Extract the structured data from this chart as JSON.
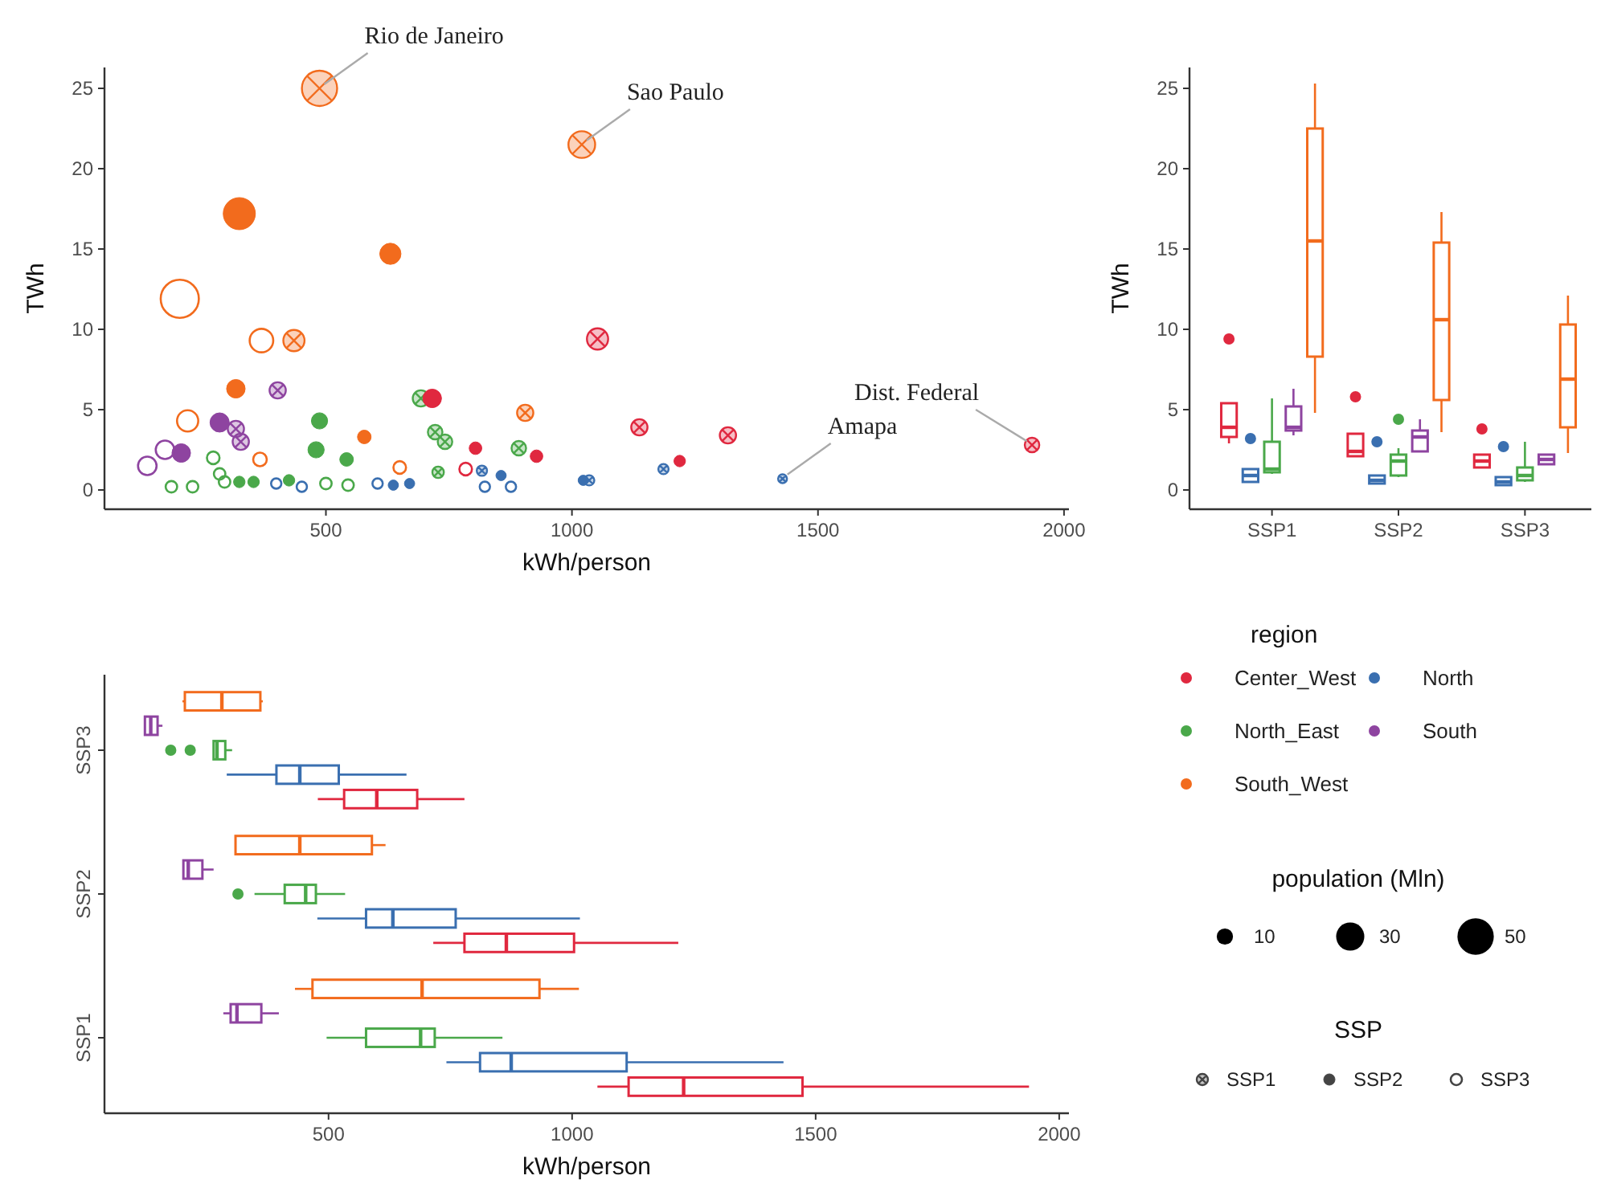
{
  "chart_data": [
    {
      "type": "bubble",
      "xlabel": "kWh/person",
      "ylabel": "TWh",
      "xlim": [
        50,
        2010
      ],
      "ylim": [
        -1.2,
        26.3
      ],
      "xticks": [
        500,
        1000,
        1500,
        2000
      ],
      "yticks": [
        0,
        5,
        10,
        15,
        20,
        25
      ],
      "legend": "right",
      "legend_title": "region",
      "size_legend": [
        10,
        30,
        50
      ],
      "annotations": [
        {
          "text": "Rio de Janeiro",
          "x": 487,
          "y": 25.0
        },
        {
          "text": "Sao Paulo",
          "x": 1020,
          "y": 21.5
        },
        {
          "text": "Dist. Federal",
          "x": 1935,
          "y": 2.8
        },
        {
          "text": "Amapa",
          "x": 1428,
          "y": 0.7
        },
        "population (Mln)",
        "SSP"
      ],
      "series": [
        {
          "name": "Center_West",
          "color": "#e0283f",
          "marker": "cross",
          "x": [
            1052,
            1137,
            1317,
            1935
          ],
          "values": [
            9.4,
            3.9,
            3.4,
            2.8
          ],
          "sizes": [
            17,
            10,
            10,
            8
          ]
        },
        {
          "name": "North",
          "color": "#3a6fb0",
          "marker": "cross",
          "x": [
            817,
            1035,
            1186,
            1428
          ],
          "values": [
            1.2,
            0.6,
            1.3,
            0.7
          ],
          "sizes": [
            4,
            4,
            4,
            3
          ]
        },
        {
          "name": "North_East",
          "color": "#4aa84a",
          "marker": "cross",
          "x": [
            693,
            722,
            742,
            892,
            728
          ],
          "values": [
            5.7,
            3.6,
            3.0,
            2.6,
            1.1
          ],
          "sizes": [
            10,
            8,
            8,
            8,
            5
          ]
        },
        {
          "name": "South",
          "color": "#8e44a0",
          "marker": "cross",
          "x": [
            317,
            327,
            402
          ],
          "values": [
            3.8,
            3.0,
            6.2
          ],
          "sizes": [
            10,
            10,
            10
          ]
        },
        {
          "name": "South_West",
          "color": "#f26b1d",
          "marker": "cross",
          "x": [
            435,
            487,
            905,
            1020
          ],
          "values": [
            9.3,
            25.0,
            4.8,
            21.5
          ],
          "sizes": [
            17,
            47,
            10,
            27
          ]
        },
        {
          "color": "#e0283f",
          "marker": "circle",
          "x": [
            716,
            804,
            928,
            1219
          ],
          "values": [
            5.7,
            2.6,
            2.1,
            1.8
          ],
          "sizes": [
            13,
            6,
            6,
            5
          ]
        },
        {
          "color": "#3a6fb0",
          "marker": "circle",
          "x": [
            637,
            670,
            856,
            1023
          ],
          "values": [
            0.3,
            0.4,
            0.9,
            0.6
          ],
          "sizes": [
            4,
            4,
            4,
            4
          ]
        },
        {
          "color": "#4aa84a",
          "marker": "circle",
          "x": [
            324,
            353,
            425,
            480,
            487,
            542
          ],
          "values": [
            0.5,
            0.5,
            0.6,
            2.5,
            4.3,
            1.9
          ],
          "sizes": [
            5,
            5,
            5,
            10,
            10,
            7
          ]
        },
        {
          "color": "#8e44a0",
          "marker": "circle",
          "x": [
            206,
            284
          ],
          "values": [
            2.3,
            4.2
          ],
          "sizes": [
            13,
            14
          ]
        },
        {
          "color": "#f26b1d",
          "marker": "circle",
          "x": [
            317,
            324,
            578,
            631
          ],
          "values": [
            6.3,
            17.2,
            3.3,
            14.7
          ],
          "sizes": [
            13,
            39,
            7,
            17
          ]
        },
        {
          "color": "#e0283f",
          "marker": "circle",
          "x": [
            784
          ],
          "values": [
            1.3
          ],
          "sizes": [
            6
          ]
        },
        {
          "color": "#3a6fb0",
          "marker": "circle",
          "x": [
            399,
            451,
            605,
            823,
            876
          ],
          "values": [
            0.4,
            0.2,
            0.4,
            0.2,
            0.2
          ],
          "sizes": [
            4,
            4,
            4,
            4,
            4
          ]
        },
        {
          "color": "#4aa84a",
          "marker": "circle",
          "x": [
            186,
            229,
            271,
            284,
            294,
            500,
            545
          ],
          "values": [
            0.2,
            0.2,
            2.0,
            1.0,
            0.5,
            0.4,
            0.3
          ],
          "sizes": [
            5,
            5,
            6,
            5,
            5,
            5,
            5
          ]
        },
        {
          "color": "#8e44a0",
          "marker": "circle",
          "x": [
            137,
            173
          ],
          "values": [
            1.5,
            2.5
          ],
          "sizes": [
            13,
            13
          ]
        },
        {
          "color": "#f26b1d",
          "marker": "circle",
          "x": [
            203,
            219,
            366,
            369,
            650
          ],
          "values": [
            11.9,
            4.3,
            1.9,
            9.3,
            1.4
          ],
          "sizes": [
            55,
            17,
            7,
            21,
            6
          ]
        }
      ]
    },
    {
      "type": "box",
      "ylabel": "TWh",
      "ylim": [
        -1.2,
        26.3
      ],
      "yticks": [
        0,
        5,
        10,
        15,
        20,
        25
      ],
      "categories": [
        "SSP1",
        "SSP2",
        "SSP3"
      ],
      "series": [
        {
          "color": "#e0283f",
          "boxes": [
            {
              "low": 2.9,
              "q1": 3.3,
              "median": 3.9,
              "q3": 5.4,
              "high": 5.4,
              "outliers": [
                9.4
              ]
            },
            {
              "low": 2.1,
              "q1": 2.1,
              "median": 2.4,
              "q3": 3.5,
              "high": 3.5,
              "outliers": [
                5.8
              ]
            },
            {
              "low": 1.4,
              "q1": 1.4,
              "median": 1.8,
              "q3": 2.2,
              "high": 2.2,
              "outliers": [
                3.8
              ]
            }
          ]
        },
        {
          "color": "#3a6fb0",
          "boxes": [
            {
              "low": 0.5,
              "q1": 0.5,
              "median": 0.9,
              "q3": 1.3,
              "high": 1.3,
              "outliers": [
                3.2
              ]
            },
            {
              "low": 0.4,
              "q1": 0.4,
              "median": 0.6,
              "q3": 0.9,
              "high": 0.9,
              "outliers": [
                3.0
              ]
            },
            {
              "low": 0.3,
              "q1": 0.3,
              "median": 0.5,
              "q3": 0.8,
              "high": 0.8,
              "outliers": [
                2.7
              ]
            }
          ]
        },
        {
          "color": "#4aa84a",
          "boxes": [
            {
              "low": 1.0,
              "q1": 1.1,
              "median": 1.3,
              "q3": 3.0,
              "high": 5.7
            },
            {
              "low": 0.8,
              "q1": 0.9,
              "median": 1.8,
              "q3": 2.2,
              "high": 2.6,
              "outliers": [
                4.4
              ]
            },
            {
              "low": 0.5,
              "q1": 0.6,
              "median": 0.9,
              "q3": 1.4,
              "high": 3.0
            }
          ]
        },
        {
          "color": "#8e44a0",
          "boxes": [
            {
              "low": 3.4,
              "q1": 3.7,
              "median": 3.9,
              "q3": 5.2,
              "high": 6.3
            },
            {
              "low": 2.4,
              "q1": 2.4,
              "median": 3.3,
              "q3": 3.7,
              "high": 4.4
            },
            {
              "low": 1.6,
              "q1": 1.6,
              "median": 1.9,
              "q3": 2.2,
              "high": 2.2
            }
          ]
        },
        {
          "color": "#f26b1d",
          "boxes": [
            {
              "low": 4.8,
              "q1": 8.3,
              "median": 15.5,
              "q3": 22.5,
              "high": 25.3
            },
            {
              "low": 3.6,
              "q1": 5.6,
              "median": 10.6,
              "q3": 15.4,
              "high": 17.3
            },
            {
              "low": 2.3,
              "q1": 3.9,
              "median": 6.9,
              "q3": 10.3,
              "high": 12.1
            }
          ]
        }
      ]
    },
    {
      "type": "box",
      "orientation": "horizontal",
      "xlabel": "kWh/person",
      "xlim": [
        40,
        2020
      ],
      "xticks": [
        500,
        1000,
        1500,
        2000
      ],
      "categories": [
        "SSP3",
        "SSP2",
        "SSP1"
      ],
      "series": [
        {
          "color": "#f26b1d",
          "boxes": [
            {
              "low": 200,
              "q1": 205,
              "median": 281,
              "q3": 360,
              "high": 365
            },
            {
              "low": 309,
              "q1": 309,
              "median": 441,
              "q3": 589,
              "high": 617
            },
            {
              "low": 431,
              "q1": 467,
              "median": 692,
              "q3": 933,
              "high": 1014
            }
          ]
        },
        {
          "color": "#8e44a0",
          "boxes": [
            {
              "low": 123,
              "q1": 123,
              "median": 135,
              "q3": 149,
              "high": 159
            },
            {
              "low": 202,
              "q1": 202,
              "median": 212,
              "q3": 241,
              "high": 264
            },
            {
              "low": 284,
              "q1": 299,
              "median": 312,
              "q3": 362,
              "high": 398
            }
          ]
        },
        {
          "color": "#4aa84a",
          "boxes": [
            {
              "low": 264,
              "q1": 264,
              "median": 271,
              "q3": 288,
              "high": 302,
              "outliers": [
                176,
                216
              ]
            },
            {
              "low": 348,
              "q1": 410,
              "median": 453,
              "q3": 474,
              "high": 534,
              "outliers": [
                314
              ]
            },
            {
              "low": 496,
              "q1": 577,
              "median": 689,
              "q3": 718,
              "high": 857
            }
          ]
        },
        {
          "color": "#3a6fb0",
          "boxes": [
            {
              "low": 291,
              "q1": 393,
              "median": 441,
              "q3": 521,
              "high": 660
            },
            {
              "low": 477,
              "q1": 577,
              "median": 632,
              "q3": 761,
              "high": 1016
            },
            {
              "low": 742,
              "q1": 811,
              "median": 875,
              "q3": 1112,
              "high": 1434
            }
          ]
        },
        {
          "color": "#e0283f",
          "boxes": [
            {
              "low": 478,
              "q1": 532,
              "median": 599,
              "q3": 682,
              "high": 779
            },
            {
              "low": 715,
              "q1": 779,
              "median": 865,
              "q3": 1004,
              "high": 1218
            },
            {
              "low": 1052,
              "q1": 1116,
              "median": 1229,
              "q3": 1473,
              "high": 1938
            }
          ]
        }
      ]
    }
  ]
}
